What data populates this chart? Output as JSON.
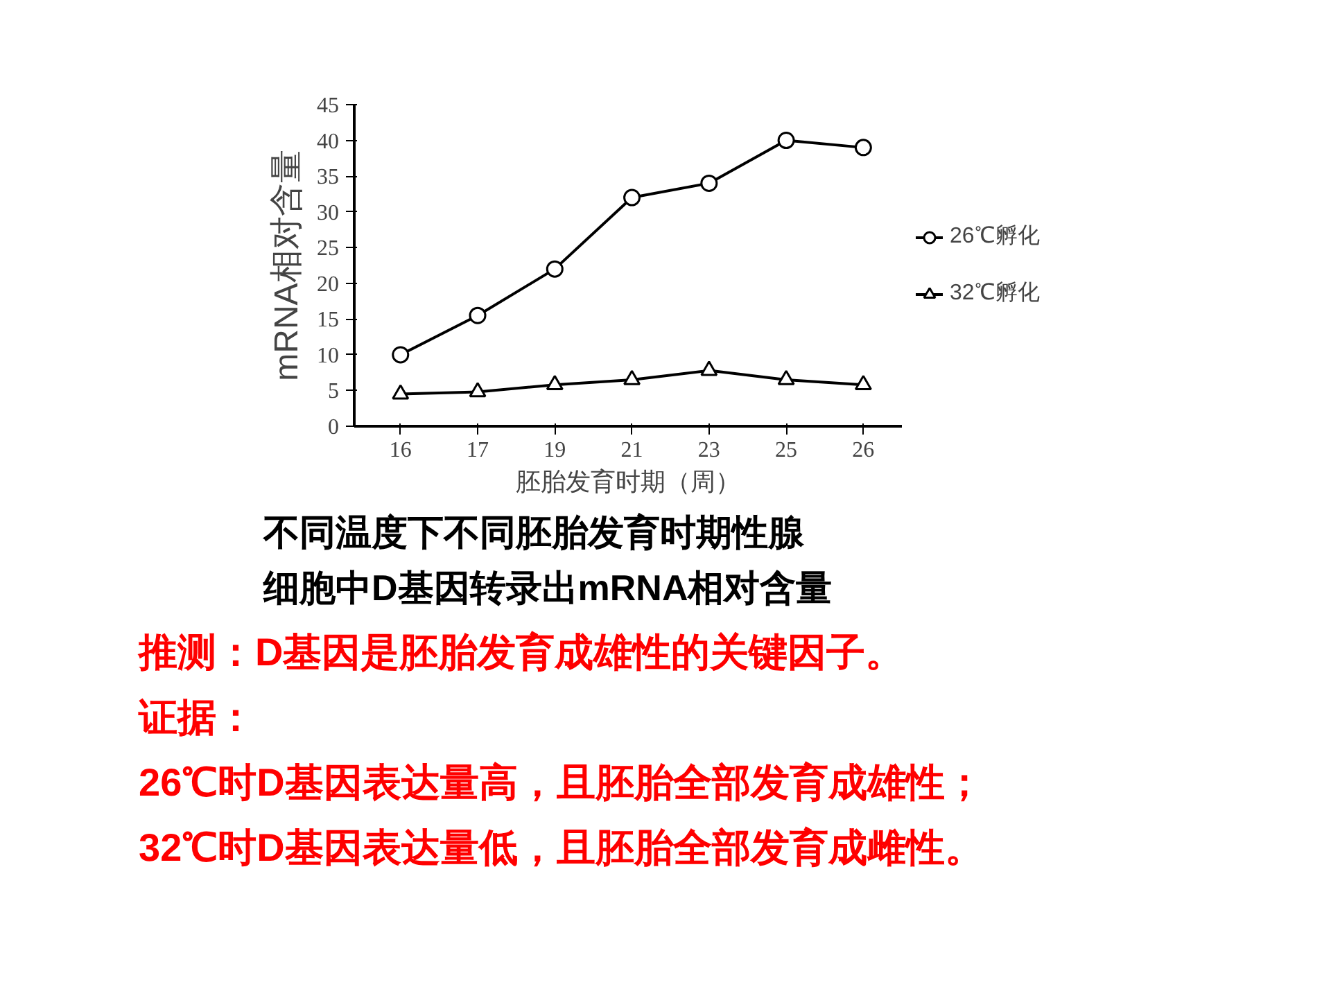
{
  "chart_data": {
    "type": "line",
    "title": "不同温度下不同胚胎发育时期性腺细胞中D基因转录出mRNA相对含量",
    "xlabel": "胚胎发育时期（周）",
    "ylabel": "mRNA相对含量",
    "categories": [
      "16",
      "17",
      "19",
      "21",
      "23",
      "25",
      "26"
    ],
    "series": [
      {
        "name": "26℃孵化",
        "color": "#000000",
        "marker": "circle",
        "values": [
          10,
          15.5,
          22,
          32,
          34,
          40,
          39
        ]
      },
      {
        "name": "32℃孵化",
        "color": "#000000",
        "marker": "triangle",
        "values": [
          4.5,
          4.8,
          5.8,
          6.5,
          7.8,
          6.5,
          5.8
        ]
      }
    ],
    "ylim": [
      0,
      45
    ],
    "yticks": [
      0,
      5,
      10,
      15,
      20,
      25,
      30,
      35,
      40,
      45
    ],
    "grid": false,
    "legend": "right",
    "line_style": "solid",
    "annotations": [
      "推测：D基因是胚胎发育成雄性的关键因子。",
      "证据：",
      "26℃时D基因表达量高，且胚胎全部发育成雄性；",
      "32℃时D基因表达量低，且胚胎全部发育成雌性。"
    ]
  }
}
